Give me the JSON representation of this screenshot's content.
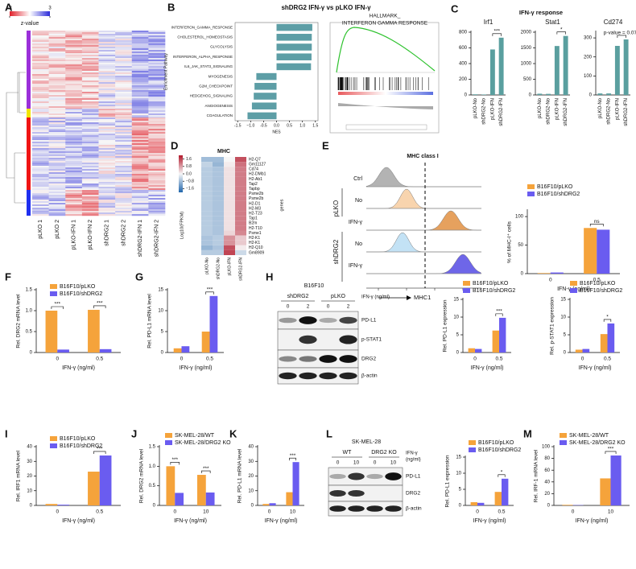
{
  "panel_labels": [
    "A",
    "B",
    "C",
    "D",
    "E",
    "F",
    "G",
    "H",
    "I",
    "J",
    "K",
    "L",
    "M"
  ],
  "heatmap_a": {
    "colorbar_title": "z-value",
    "colorbar_lim": [
      -3,
      3
    ],
    "colorbar_ticks": [
      -3,
      3
    ],
    "columns": [
      "pLKO 1",
      "pLKO 2",
      "pLKO-IFN 1",
      "pLKO-IFN 2",
      "shDRG2 1",
      "shDRG2 2",
      "shDRG2-IFN 1",
      "shDRG2-IFN 2"
    ]
  },
  "panel_b_title": "shDRG2 IFN-γ vs pLKO IFN-γ",
  "gsea": {
    "title_lines": [
      "HALLMARK_",
      "INTERFERON GAMMA RESPONSE"
    ]
  },
  "panel_c_title": "IFN-γ response",
  "mhc_heatmap": {
    "title": "MHC",
    "colorbar_title": "Log10(FPKM)",
    "axis_label": "genes",
    "colorbar_lim": [
      -2,
      2
    ],
    "colorbar_ticks": [
      1.6,
      {
        "value": 0.8,
        "label": "0.8"
      },
      {
        "value": 0,
        "label": "0.0"
      },
      {
        "value": -0.8,
        "label": "−0.8"
      },
      {
        "value": -1.6,
        "label": "−1.6"
      }
    ],
    "columns": [
      "pLKO-No",
      "shDRG2-No",
      "pLKO-IFN",
      "shDRG2-IFN"
    ],
    "genes": [
      "H2-Q7",
      "Gm11127",
      "Cd74",
      "H2-DMb1",
      "H2-Ab1",
      "Tap2",
      "Tapbp",
      "Psme2b",
      "Psme2b",
      "H2-D1",
      "H2-M3",
      "H2-T23",
      "Tap1",
      "B2m",
      "H2-T10",
      "Psme1",
      "H2-K1",
      "H2-K1",
      "H2-Q10",
      "Gm8909"
    ],
    "values": [
      [
        -0.8,
        -0.8,
        0.0,
        1.5
      ],
      [
        -0.5,
        -0.9,
        0.1,
        1.2
      ],
      [
        -0.6,
        -0.7,
        0.2,
        1.1
      ],
      [
        -0.6,
        -0.7,
        0.2,
        1.1
      ],
      [
        -0.6,
        -0.7,
        0.2,
        1.1
      ],
      [
        -0.6,
        -0.7,
        0.2,
        1.1
      ],
      [
        -0.6,
        -0.7,
        0.2,
        1.1
      ],
      [
        -0.6,
        -0.7,
        0.2,
        1.1
      ],
      [
        -0.6,
        -0.7,
        0.2,
        1.1
      ],
      [
        -0.6,
        -0.7,
        0.2,
        1.1
      ],
      [
        -0.6,
        -0.7,
        0.2,
        1.1
      ],
      [
        -0.6,
        -0.7,
        0.2,
        1.1
      ],
      [
        -0.6,
        -0.7,
        0.2,
        1.1
      ],
      [
        -0.6,
        -0.7,
        0.2,
        1.1
      ],
      [
        -0.6,
        -0.7,
        0.2,
        1.1
      ],
      [
        -0.6,
        -0.7,
        0.3,
        1.0
      ],
      [
        -0.7,
        -0.6,
        0.9,
        0.4
      ],
      [
        -0.7,
        -0.6,
        0.9,
        0.4
      ],
      [
        -0.9,
        -0.7,
        1.5,
        0.1
      ],
      [
        -0.6,
        -0.6,
        1.6,
        -0.4
      ]
    ]
  },
  "flow": {
    "title": "MHC class I",
    "rows": [
      "Ctrl",
      "No",
      "IFN-γ",
      "No",
      "IFN-γ"
    ],
    "groups": [
      "pLKO",
      "shDRG2"
    ],
    "xlabel": "MHC1"
  },
  "blot_h": {
    "cell_line": "B16F10",
    "groups": [
      "shDRG2",
      "pLKO"
    ],
    "treatment": "IFN-γ (ng/ml)",
    "doses": [
      "0",
      "2",
      "0",
      "2"
    ],
    "bands": [
      "PD-L1",
      "p-STAT1",
      "DRG2",
      "β-actin"
    ]
  },
  "blot_l": {
    "cell_line": "SK-MEL-28",
    "groups": [
      "WT",
      "DRG2 KO"
    ],
    "treatment": [
      "IFN-γ",
      "(ng/ml)"
    ],
    "doses": [
      "0",
      "10",
      "0",
      "10"
    ],
    "bands": [
      "PD-L1",
      "DRG2",
      "β-actin"
    ]
  },
  "chart_data": [
    {
      "type": "hbar",
      "ylabel": "Enrichment Pathway",
      "xlabel": "NES",
      "categories": [
        "INTERFERON_GAMMA_RESPONSE",
        "CHOLESTEROL_HOMEOSTASIS",
        "GLYCOLYSIS",
        "INTERFERON_ALPHA_RESPONSE",
        "IL6_JAK_STAT3_SIGNALING",
        "MYOGENESIS",
        "G2M_CHECKPOINT",
        "HEDGEHOG_SIGNALING",
        "ANGIOGENESIS",
        "COAGULATION"
      ],
      "values": [
        1.38,
        1.36,
        1.36,
        1.35,
        1.33,
        -0.78,
        -0.85,
        -0.88,
        -0.95,
        -1.12
      ],
      "color": "#5d9ea6",
      "xlim": [
        -1.6,
        1.6
      ],
      "xticks": [
        -1.5,
        {
          "value": -1,
          "label": "−1.0"
        },
        -0.5,
        {
          "value": 0,
          "label": "0.0"
        },
        0.5,
        {
          "value": 1,
          "label": "1.0"
        },
        1.5
      ]
    },
    {
      "type": "bar",
      "title": "Irf1",
      "categories": [
        "pLKO-No",
        "shDRG2-No",
        "pLKO-IFN",
        "shDRG2-IFN"
      ],
      "series": [
        {
          "color": "#5a9f9f",
          "values": [
            8,
            6,
            580,
            730
          ]
        }
      ],
      "ylim": [
        0,
        800
      ],
      "yticks": [
        0,
        200,
        400,
        600,
        800
      ],
      "annotations": [
        "***"
      ]
    },
    {
      "type": "bar",
      "title": "Stat1",
      "categories": [
        "pLKO-No",
        "shDRG2-No",
        "pLKO-IFN",
        "shDRG2-IFN"
      ],
      "series": [
        {
          "color": "#5a9f9f",
          "values": [
            40,
            35,
            1560,
            1880
          ]
        }
      ],
      "ylim": [
        0,
        2000
      ],
      "yticks": [
        0,
        500,
        1000,
        1500,
        2000
      ],
      "annotations": [
        "*"
      ]
    },
    {
      "type": "bar",
      "title": "Cd274",
      "categories": [
        "pLKO-No",
        "shDRG2-No",
        "pLKO-IFN",
        "shDRG2-IFN"
      ],
      "series": [
        {
          "color": "#5a9f9f",
          "values": [
            8,
            8,
            258,
            292
          ]
        }
      ],
      "ylim": [
        0,
        330
      ],
      "yticks": [
        0,
        100,
        200,
        300
      ],
      "annotations": [
        "p-value = 0.072"
      ]
    },
    {
      "type": "bar",
      "ylabel": "% of MHC-I⁺ cells",
      "xlabel": "IFN-γ (ng/ml)",
      "categories": [
        "0",
        "0.5"
      ],
      "series": [
        {
          "name": "B16F10/pLKO",
          "color": "#f5a33b",
          "values": [
            1,
            80
          ]
        },
        {
          "name": "B16F10/shDRG2",
          "color": "#6a5cf0",
          "values": [
            2,
            77
          ]
        }
      ],
      "ylim": [
        0,
        110
      ],
      "yticks": [
        0,
        50,
        100
      ],
      "annotations": [
        "ns"
      ]
    },
    {
      "type": "bar",
      "ylabel": "Rel. DRG2 mRNA level",
      "xlabel": "IFN-γ (ng/ml)",
      "categories": [
        "0",
        "0.5"
      ],
      "series": [
        {
          "name": "B16F10/pLKO",
          "color": "#f5a33b",
          "values": [
            1.0,
            1.02
          ]
        },
        {
          "name": "B16F10/shDRG2",
          "color": "#6a5cf0",
          "values": [
            0.07,
            0.08
          ]
        }
      ],
      "ylim": [
        0,
        1.5
      ],
      "yticks": [
        0,
        0.5,
        {
          "value": 1,
          "label": "1.0"
        },
        1.5
      ],
      "annotations": [
        "***",
        "***"
      ]
    },
    {
      "type": "bar",
      "ylabel": "Rel. PD-L1 mRNA level",
      "xlabel": "IFN-γ (ng/ml)",
      "categories": [
        "0",
        "0.5"
      ],
      "series": [
        {
          "color": "#f5a33b",
          "values": [
            1,
            5
          ]
        },
        {
          "color": "#6a5cf0",
          "values": [
            1.5,
            13.5
          ]
        }
      ],
      "ylim": [
        0,
        15
      ],
      "yticks": [
        0,
        5,
        10,
        15
      ],
      "annotations": [
        "***"
      ]
    },
    {
      "type": "bar",
      "ylabel": "Rel. PD-L1 expression",
      "xlabel": "IFN-γ (ng/ml)",
      "categories": [
        "0",
        "0.5"
      ],
      "series": [
        {
          "name": "B16F10/pLKO",
          "color": "#f5a33b",
          "values": [
            1.2,
            6.2
          ]
        },
        {
          "name": "B16F10/shDRG2",
          "color": "#6a5cf0",
          "values": [
            1,
            9.8
          ]
        }
      ],
      "ylim": [
        0,
        15
      ],
      "yticks": [
        0,
        5,
        10,
        15
      ],
      "annotations": [
        "***"
      ]
    },
    {
      "type": "bar",
      "ylabel": "Rel. p-STAT1 expression",
      "xlabel": "IFN-γ (ng/ml)",
      "categories": [
        "0",
        "0.5"
      ],
      "series": [
        {
          "name": "B16F10/pLKO",
          "color": "#f5a33b",
          "values": [
            0.8,
            5.2
          ]
        },
        {
          "name": "B16F10/shDRG2",
          "color": "#6a5cf0",
          "values": [
            1,
            8.2
          ]
        }
      ],
      "ylim": [
        0,
        15
      ],
      "yticks": [
        0,
        5,
        10,
        15
      ],
      "annotations": [
        "*"
      ]
    },
    {
      "type": "bar",
      "ylabel": "Rel. IRF1 mRNA level",
      "xlabel": "IFN-γ (ng/ml)",
      "categories": [
        "0",
        "0.5"
      ],
      "series": [
        {
          "name": "B16F10/pLKO",
          "color": "#f5a33b",
          "values": [
            1,
            23
          ]
        },
        {
          "name": "B16F10/shDRG2",
          "color": "#6a5cf0",
          "values": [
            0.5,
            34
          ]
        }
      ],
      "ylim": [
        0,
        40
      ],
      "yticks": [
        0,
        10,
        20,
        30,
        40
      ],
      "annotations": [
        "***"
      ]
    },
    {
      "type": "bar",
      "ylabel": "Rel. DRG2 mRNA level",
      "xlabel": "IFN-γ (ng/ml)",
      "categories": [
        "0",
        "10"
      ],
      "series": [
        {
          "name": "SK-MEL-28/WT",
          "color": "#f5a33b",
          "values": [
            1,
            0.78
          ]
        },
        {
          "name": "SK-MEL-28/DRG2 KO",
          "color": "#6a5cf0",
          "values": [
            0.32,
            0.33
          ]
        }
      ],
      "ylim": [
        0,
        1.5
      ],
      "yticks": [
        0,
        0.5,
        {
          "value": 1,
          "label": "1.0"
        },
        1.5
      ],
      "annotations": [
        "***",
        "***"
      ]
    },
    {
      "type": "bar",
      "ylabel": "Rel. PD-L1 mRNA level",
      "xlabel": "IFN-γ (ng/ml)",
      "categories": [
        "0",
        "10"
      ],
      "series": [
        {
          "color": "#f5a33b",
          "values": [
            1,
            9
          ]
        },
        {
          "color": "#6a5cf0",
          "values": [
            1.5,
            29.5
          ]
        }
      ],
      "ylim": [
        0,
        40
      ],
      "yticks": [
        0,
        10,
        20,
        30,
        40
      ],
      "annotations": [
        "***"
      ]
    },
    {
      "type": "bar",
      "ylabel": "Rel. PD-L1 expression",
      "xlabel": "IFN-γ (ng/ml)",
      "categories": [
        "0",
        "0.5"
      ],
      "series": [
        {
          "name": "B16F10/pLKO",
          "color": "#f5a33b",
          "values": [
            1,
            4.2
          ]
        },
        {
          "name": "B16F10/shDRG2",
          "color": "#6a5cf0",
          "values": [
            0.8,
            8.3
          ]
        }
      ],
      "ylim": [
        0,
        15
      ],
      "yticks": [
        0,
        5,
        10,
        15
      ],
      "annotations": [
        "*"
      ]
    },
    {
      "type": "bar",
      "ylabel": "Rel. IRF-1 mRNA level",
      "xlabel": "IFN-γ (ng/ml)",
      "categories": [
        "0",
        "10"
      ],
      "series": [
        {
          "name": "SK-MEL-28/WT",
          "color": "#f5a33b",
          "values": [
            1,
            46
          ]
        },
        {
          "name": "SK-MEL-28/DRG2 KO",
          "color": "#6a5cf0",
          "values": [
            0.5,
            85
          ]
        }
      ],
      "ylim": [
        0,
        100
      ],
      "yticks": [
        0,
        20,
        40,
        60,
        80,
        100
      ],
      "annotations": [
        "***"
      ]
    }
  ]
}
